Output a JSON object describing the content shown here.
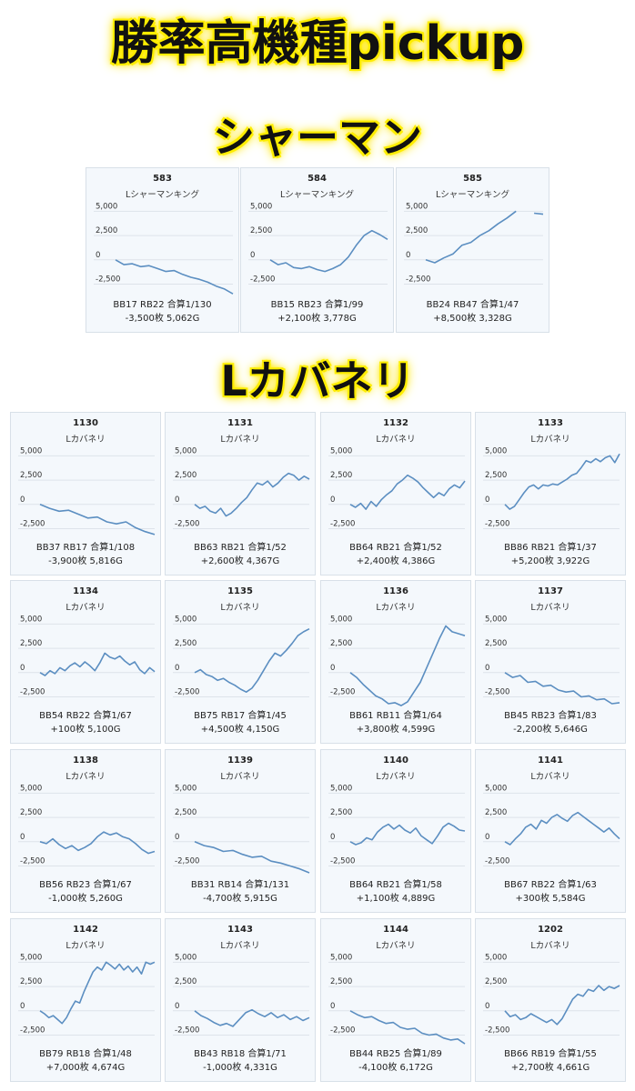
{
  "title": "勝率高機種pickup",
  "sections": [
    {
      "heading": "シャーマン",
      "machine": "Lシャーマンキング",
      "cards": [
        {
          "number": "583",
          "stats_line1": "BB17 RB22 合算1/130",
          "stats_line2": "-3,500枚 5,062G"
        },
        {
          "number": "584",
          "stats_line1": "BB15 RB23 合算1/99",
          "stats_line2": "+2,100枚 3,778G"
        },
        {
          "number": "585",
          "stats_line1": "BB24 RB47 合算1/47",
          "stats_line2": "+8,500枚 3,328G"
        }
      ]
    },
    {
      "heading": "Lカバネリ",
      "machine": "Lカバネリ",
      "cards": [
        {
          "number": "1130",
          "stats_line1": "BB37 RB17 合算1/108",
          "stats_line2": "-3,900枚 5,816G"
        },
        {
          "number": "1131",
          "stats_line1": "BB63 RB21 合算1/52",
          "stats_line2": "+2,600枚 4,367G"
        },
        {
          "number": "1132",
          "stats_line1": "BB64 RB21 合算1/52",
          "stats_line2": "+2,400枚 4,386G"
        },
        {
          "number": "1133",
          "stats_line1": "BB86 RB21 合算1/37",
          "stats_line2": "+5,200枚 3,922G"
        },
        {
          "number": "1134",
          "stats_line1": "BB54 RB22 合算1/67",
          "stats_line2": "+100枚 5,100G"
        },
        {
          "number": "1135",
          "stats_line1": "BB75 RB17 合算1/45",
          "stats_line2": "+4,500枚 4,150G"
        },
        {
          "number": "1136",
          "stats_line1": "BB61 RB11 合算1/64",
          "stats_line2": "+3,800枚 4,599G"
        },
        {
          "number": "1137",
          "stats_line1": "BB45 RB23 合算1/83",
          "stats_line2": "-2,200枚 5,646G"
        },
        {
          "number": "1138",
          "stats_line1": "BB56 RB23 合算1/67",
          "stats_line2": "-1,000枚 5,260G"
        },
        {
          "number": "1139",
          "stats_line1": "BB31 RB14 合算1/131",
          "stats_line2": "-4,700枚 5,915G"
        },
        {
          "number": "1140",
          "stats_line1": "BB64 RB21 合算1/58",
          "stats_line2": "+1,100枚 4,889G"
        },
        {
          "number": "1141",
          "stats_line1": "BB67 RB22 合算1/63",
          "stats_line2": "+300枚 5,584G"
        },
        {
          "number": "1142",
          "stats_line1": "BB79 RB18 合算1/48",
          "stats_line2": "+7,000枚 4,674G"
        },
        {
          "number": "1143",
          "stats_line1": "BB43 RB18 合算1/71",
          "stats_line2": "-1,000枚 4,331G"
        },
        {
          "number": "1144",
          "stats_line1": "BB44 RB25 合算1/89",
          "stats_line2": "-4,100枚 6,172G"
        },
        {
          "number": "1202",
          "stats_line1": "BB66 RB19 合算1/55",
          "stats_line2": "+2,700枚 4,661G"
        }
      ]
    }
  ],
  "chart_data": {
    "type": "line",
    "ylim": [
      -3200,
      5500
    ],
    "yticks": [
      "5,000",
      "2,500",
      "0",
      "-2,500"
    ],
    "ytick_values": [
      5000,
      2500,
      0,
      -2500
    ],
    "line_color": "#5b8ec1",
    "grid": true,
    "series": [
      {
        "number": "583",
        "values": [
          0,
          -500,
          -400,
          -700,
          -600,
          -900,
          -1200,
          -1100,
          -1500,
          -1800,
          -2000,
          -2300,
          -2700,
          -3000,
          -3500
        ]
      },
      {
        "number": "584",
        "values": [
          0,
          -500,
          -300,
          -800,
          -900,
          -700,
          -1000,
          -1200,
          -900,
          -500,
          300,
          1500,
          2500,
          3000,
          2600,
          2100
        ]
      },
      {
        "number": "585",
        "values": [
          0,
          -300,
          200,
          600,
          1500,
          1800,
          2500,
          3000,
          3700,
          4300,
          5000,
          null,
          4800,
          4700
        ]
      },
      {
        "number": "1130",
        "values": [
          0,
          -400,
          -700,
          -600,
          -1000,
          -1400,
          -1300,
          -1800,
          -2000,
          -1800,
          -2400,
          -2800,
          -3100
        ]
      },
      {
        "number": "1131",
        "values": [
          0,
          -400,
          -200,
          -700,
          -900,
          -400,
          -1200,
          -900,
          -400,
          200,
          700,
          1500,
          2200,
          2000,
          2400,
          1800,
          2200,
          2800,
          3200,
          3000,
          2500,
          2900,
          2600
        ]
      },
      {
        "number": "1132",
        "values": [
          0,
          -300,
          100,
          -500,
          300,
          -200,
          500,
          1000,
          1400,
          2100,
          2500,
          3000,
          2700,
          2300,
          1700,
          1200,
          700,
          1200,
          900,
          1600,
          2000,
          1700,
          2400
        ]
      },
      {
        "number": "1133",
        "values": [
          0,
          -500,
          -200,
          500,
          1200,
          1800,
          2000,
          1600,
          2000,
          1900,
          2100,
          2000,
          2300,
          2600,
          3000,
          3200,
          3800,
          4500,
          4300,
          4700,
          4400,
          4800,
          5000,
          4300,
          5200
        ]
      },
      {
        "number": "1134",
        "values": [
          0,
          -300,
          200,
          -100,
          500,
          200,
          700,
          1000,
          600,
          1100,
          700,
          200,
          1000,
          2000,
          1600,
          1400,
          1700,
          1200,
          800,
          1100,
          300,
          -100,
          500,
          100
        ]
      },
      {
        "number": "1135",
        "values": [
          0,
          300,
          -200,
          -400,
          -800,
          -600,
          -1000,
          -1300,
          -1700,
          -2000,
          -1600,
          -800,
          200,
          1200,
          2000,
          1700,
          2300,
          3000,
          3800,
          4200,
          4500
        ]
      },
      {
        "number": "1136",
        "values": [
          0,
          -500,
          -1200,
          -1800,
          -2400,
          -2700,
          -3200,
          -3100,
          -3400,
          -3000,
          -2000,
          -1000,
          500,
          2000,
          3500,
          4800,
          4200,
          4000,
          3800
        ]
      },
      {
        "number": "1137",
        "values": [
          0,
          -500,
          -300,
          -1000,
          -900,
          -1400,
          -1300,
          -1800,
          -2000,
          -1900,
          -2500,
          -2400,
          -2800,
          -2700,
          -3200,
          -3100
        ]
      },
      {
        "number": "1138",
        "values": [
          0,
          -200,
          300,
          -300,
          -700,
          -400,
          -900,
          -600,
          -200,
          500,
          1000,
          700,
          900,
          500,
          300,
          -200,
          -800,
          -1200,
          -1000
        ]
      },
      {
        "number": "1139",
        "values": [
          0,
          -400,
          -600,
          -1000,
          -900,
          -1300,
          -1600,
          -1500,
          -2000,
          -2200,
          -2500,
          -2800,
          -3200
        ]
      },
      {
        "number": "1140",
        "values": [
          0,
          -300,
          -100,
          400,
          200,
          1000,
          1500,
          1800,
          1300,
          1700,
          1200,
          900,
          1400,
          600,
          200,
          -200,
          600,
          1500,
          1900,
          1600,
          1200,
          1100
        ]
      },
      {
        "number": "1141",
        "values": [
          0,
          -300,
          300,
          800,
          1500,
          1800,
          1300,
          2200,
          1900,
          2500,
          2800,
          2400,
          2100,
          2700,
          3000,
          2600,
          2200,
          1800,
          1400,
          1000,
          1400,
          800,
          300
        ]
      },
      {
        "number": "1142",
        "values": [
          0,
          -300,
          -700,
          -500,
          -900,
          -1300,
          -700,
          200,
          1000,
          800,
          2000,
          3000,
          4000,
          4500,
          4200,
          5000,
          4700,
          4300,
          4800,
          4200,
          4600,
          4000,
          4500,
          3800,
          5000,
          4800,
          5000
        ]
      },
      {
        "number": "1143",
        "values": [
          0,
          -500,
          -800,
          -1200,
          -1500,
          -1300,
          -1600,
          -900,
          -200,
          100,
          -300,
          -600,
          -200,
          -700,
          -400,
          -900,
          -600,
          -1000,
          -700
        ]
      },
      {
        "number": "1144",
        "values": [
          0,
          -400,
          -700,
          -600,
          -1000,
          -1300,
          -1200,
          -1700,
          -1900,
          -1800,
          -2300,
          -2500,
          -2400,
          -2800,
          -3000,
          -2900,
          -3400
        ]
      },
      {
        "number": "1202",
        "values": [
          0,
          -600,
          -400,
          -900,
          -700,
          -300,
          -600,
          -900,
          -1200,
          -900,
          -1400,
          -800,
          200,
          1200,
          1700,
          1500,
          2200,
          2000,
          2600,
          2100,
          2500,
          2300,
          2600
        ]
      }
    ]
  }
}
